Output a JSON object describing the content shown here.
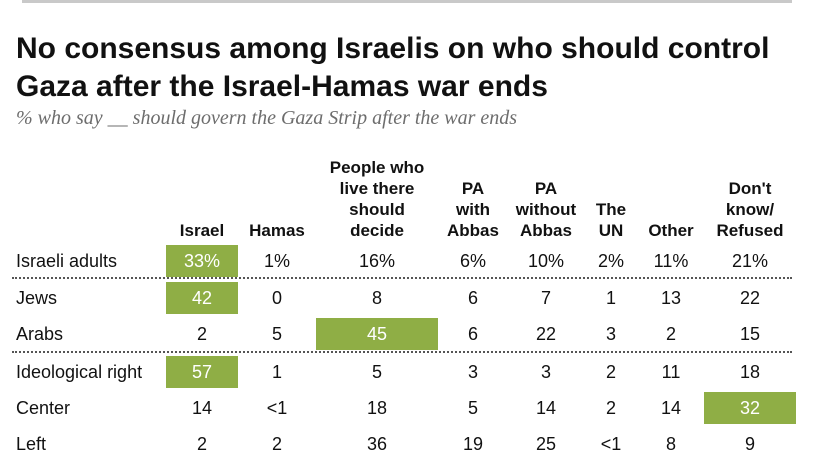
{
  "title": "No consensus among Israelis on who should control Gaza after the Israel-Hamas war ends",
  "subtitle": "% who say __ should govern the Gaza Strip after the war ends",
  "columns": [
    "Israel",
    "Hamas",
    "People who\nlive there\nshould\ndecide",
    "PA\nwith\nAbbas",
    "PA\nwithout\nAbbas",
    "The\nUN",
    "Other",
    "Don't\nknow/\nRefused"
  ],
  "rows": [
    {
      "label": "Israeli adults",
      "values": [
        "33%",
        "1%",
        "16%",
        "6%",
        "10%",
        "2%",
        "11%",
        "21%"
      ],
      "highlight": 0
    },
    {
      "label": "Jews",
      "values": [
        "42",
        "0",
        "8",
        "6",
        "7",
        "1",
        "13",
        "22"
      ],
      "highlight": 0
    },
    {
      "label": "Arabs",
      "values": [
        "2",
        "5",
        "45",
        "6",
        "22",
        "3",
        "2",
        "15"
      ],
      "highlight": 2
    },
    {
      "label": "Ideological right",
      "values": [
        "57",
        "1",
        "5",
        "3",
        "3",
        "2",
        "11",
        "18"
      ],
      "highlight": 0
    },
    {
      "label": "Center",
      "values": [
        "14",
        "<1",
        "18",
        "5",
        "14",
        "2",
        "14",
        "32"
      ],
      "highlight": 7
    },
    {
      "label": "Left",
      "values": [
        "2",
        "2",
        "36",
        "19",
        "25",
        "<1",
        "8",
        "9"
      ],
      "highlight": -1
    }
  ],
  "colors": {
    "highlight": "#8fae45",
    "title": "#111111",
    "subtitle": "#6d6d6d"
  },
  "chart_data": {
    "type": "table",
    "title": "No consensus among Israelis on who should control Gaza after the Israel-Hamas war ends",
    "subtitle": "% who say __ should govern the Gaza Strip after the war ends",
    "categories": [
      "Israel",
      "Hamas",
      "People who live there should decide",
      "PA with Abbas",
      "PA without Abbas",
      "The UN",
      "Other",
      "Don't know/ Refused"
    ],
    "series": [
      {
        "name": "Israeli adults",
        "values": [
          33,
          1,
          16,
          6,
          10,
          2,
          11,
          21
        ]
      },
      {
        "name": "Jews",
        "values": [
          42,
          0,
          8,
          6,
          7,
          1,
          13,
          22
        ]
      },
      {
        "name": "Arabs",
        "values": [
          2,
          5,
          45,
          6,
          22,
          3,
          2,
          15
        ]
      },
      {
        "name": "Ideological right",
        "values": [
          57,
          1,
          5,
          3,
          3,
          2,
          11,
          18
        ]
      },
      {
        "name": "Center",
        "values": [
          14,
          "<1",
          18,
          5,
          14,
          2,
          14,
          32
        ]
      },
      {
        "name": "Left",
        "values": [
          2,
          2,
          36,
          19,
          25,
          "<1",
          8,
          9
        ]
      }
    ]
  }
}
